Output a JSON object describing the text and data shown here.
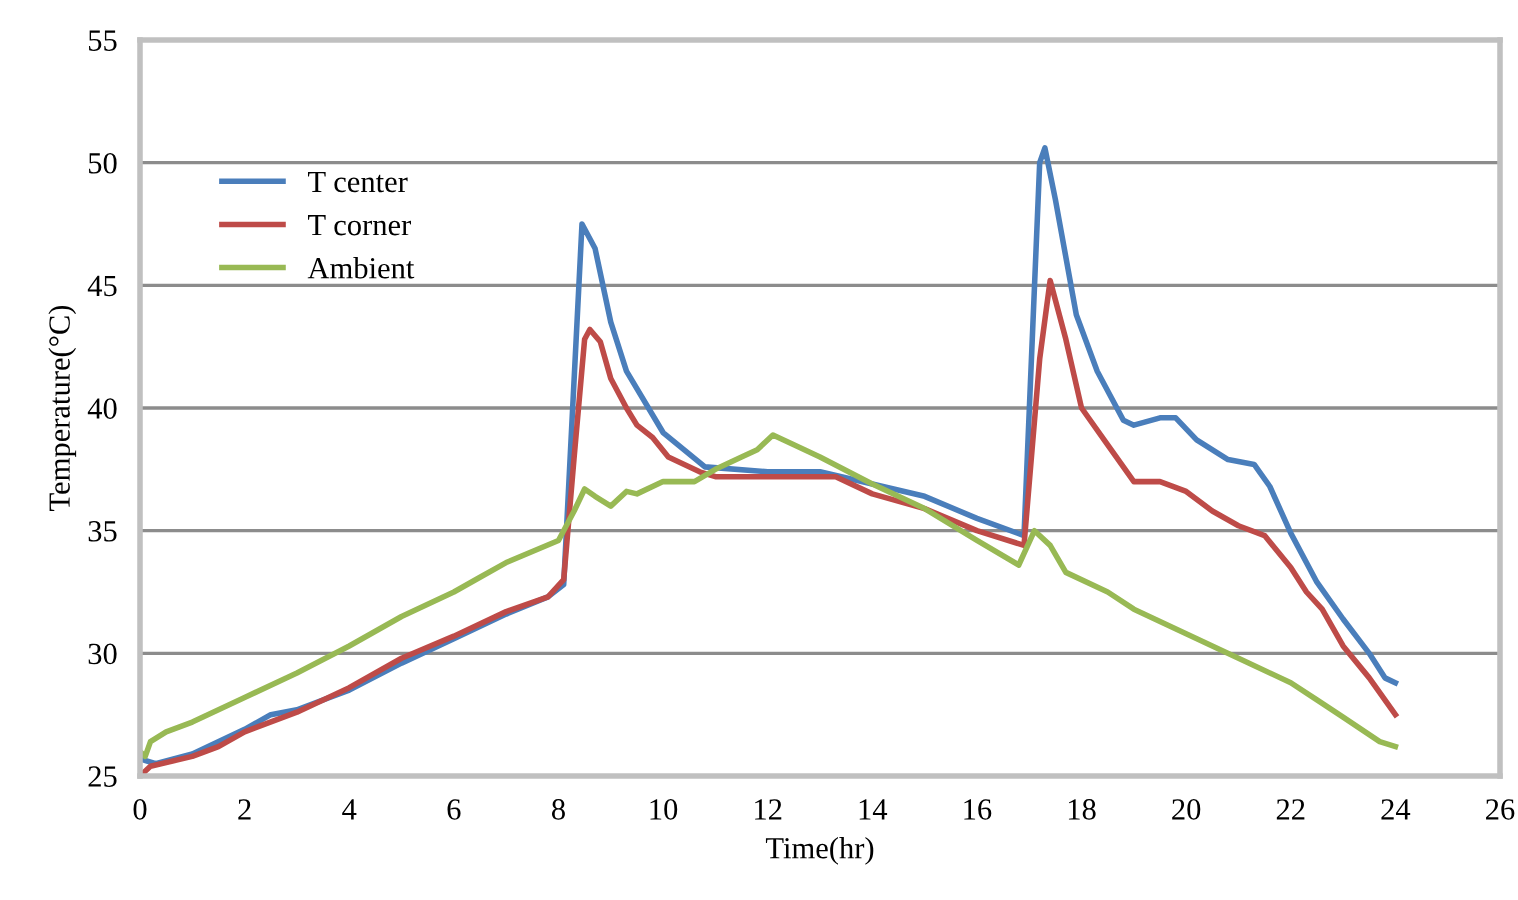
{
  "chart_data": {
    "type": "line",
    "xlabel": "Time(hr)",
    "ylabel": "Temperature(°C)",
    "xlim": [
      0,
      26
    ],
    "xticks": [
      0,
      2,
      4,
      6,
      8,
      10,
      12,
      14,
      16,
      18,
      20,
      22,
      24,
      26
    ],
    "ylim": [
      25,
      55
    ],
    "yticks": [
      25,
      30,
      35,
      40,
      45,
      50,
      55
    ],
    "grid": "y",
    "legend": "top left",
    "marker": "none",
    "line_style": "solid",
    "series": [
      {
        "name": "T center",
        "color": "#4a7ebb",
        "x": [
          0,
          0.3,
          1,
          2,
          2.5,
          3,
          4,
          5,
          6,
          7,
          7.8,
          8.1,
          8.45,
          8.7,
          9,
          9.3,
          10,
          10.8,
          12,
          13,
          14,
          15,
          16,
          16.9,
          17.2,
          17.3,
          17.5,
          17.9,
          18.3,
          18.8,
          19,
          19.5,
          19.8,
          20.2,
          20.8,
          21.3,
          21.6,
          22,
          22.5,
          23,
          23.5,
          23.8,
          24
        ],
        "values": [
          25.7,
          25.5,
          25.9,
          26.9,
          27.5,
          27.7,
          28.5,
          29.6,
          30.6,
          31.6,
          32.3,
          32.8,
          47.5,
          46.5,
          43.5,
          41.5,
          39.0,
          37.6,
          37.4,
          37.4,
          36.9,
          36.4,
          35.5,
          34.8,
          50.0,
          50.6,
          48.5,
          43.8,
          41.5,
          39.5,
          39.3,
          39.6,
          39.6,
          38.7,
          37.9,
          37.7,
          36.8,
          34.9,
          32.9,
          31.4,
          30.0,
          29.0,
          28.8
        ]
      },
      {
        "name": "T corner",
        "color": "#be4b48",
        "x": [
          0,
          0.2,
          1,
          1.5,
          2,
          3,
          4,
          5,
          6,
          7,
          7.8,
          8.1,
          8.3,
          8.5,
          8.6,
          8.8,
          9,
          9.3,
          9.5,
          9.8,
          10.1,
          10.7,
          11,
          12,
          13.3,
          14,
          15,
          16,
          16.9,
          17.2,
          17.4,
          17.7,
          18,
          18.5,
          19,
          19.5,
          20,
          20.5,
          21,
          21.5,
          22,
          22.3,
          22.6,
          23,
          23.5,
          24
        ],
        "values": [
          25.0,
          25.4,
          25.8,
          26.2,
          26.8,
          27.6,
          28.6,
          29.8,
          30.7,
          31.7,
          32.3,
          33.0,
          38.0,
          42.8,
          43.2,
          42.7,
          41.2,
          40.0,
          39.3,
          38.8,
          38.0,
          37.4,
          37.2,
          37.2,
          37.2,
          36.5,
          35.9,
          35.0,
          34.4,
          42.0,
          45.2,
          42.8,
          40.0,
          38.5,
          37.0,
          37.0,
          36.6,
          35.8,
          35.2,
          34.8,
          33.5,
          32.5,
          31.8,
          30.3,
          29.0,
          27.5
        ]
      },
      {
        "name": "Ambient",
        "color": "#98b954",
        "x": [
          0,
          0.1,
          0.2,
          0.5,
          1,
          2,
          3,
          4,
          5,
          6,
          6.5,
          7,
          8,
          8.3,
          8.5,
          8.7,
          9,
          9.3,
          9.5,
          10,
          10.6,
          11,
          11.5,
          11.8,
          12.1,
          12.5,
          13,
          14,
          15,
          16,
          16.8,
          17.1,
          17.4,
          17.7,
          18.5,
          19,
          20,
          21,
          22,
          22.5,
          23,
          23.7,
          24
        ],
        "values": [
          26.0,
          25.8,
          26.4,
          26.8,
          27.2,
          28.2,
          29.2,
          30.3,
          31.5,
          32.5,
          33.1,
          33.7,
          34.6,
          35.8,
          36.7,
          36.4,
          36.0,
          36.6,
          36.5,
          37.0,
          37.0,
          37.5,
          38.0,
          38.3,
          38.9,
          38.5,
          38.0,
          36.9,
          35.9,
          34.6,
          33.6,
          35.0,
          34.4,
          33.3,
          32.5,
          31.8,
          30.8,
          29.8,
          28.8,
          28.1,
          27.4,
          26.4,
          26.2
        ]
      }
    ]
  }
}
